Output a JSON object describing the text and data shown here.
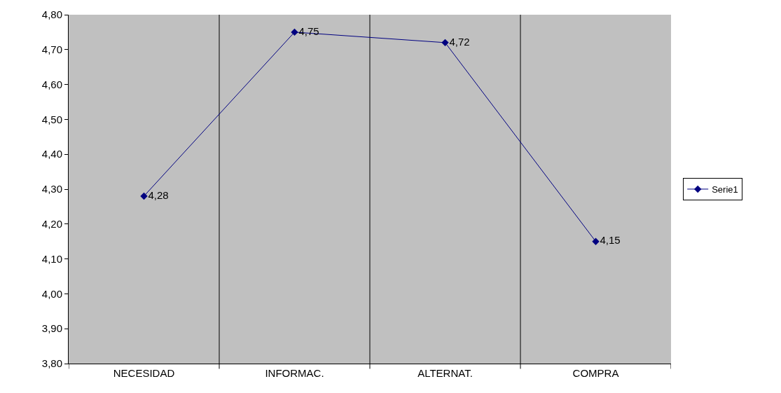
{
  "chart_data": {
    "type": "line",
    "categories": [
      "NECESIDAD",
      "INFORMAC.",
      "ALTERNAT.",
      "COMPRA"
    ],
    "series": [
      {
        "name": "Serie1",
        "color": "#000080",
        "values": [
          4.28,
          4.75,
          4.72,
          4.15
        ],
        "value_labels": [
          "4,28",
          "4,75",
          "4,72",
          "4,15"
        ]
      }
    ],
    "ylim": [
      3.8,
      4.8
    ],
    "yticks": [
      {
        "value": 3.8,
        "label": "3,80"
      },
      {
        "value": 3.9,
        "label": "3,90"
      },
      {
        "value": 4.0,
        "label": "4,00"
      },
      {
        "value": 4.1,
        "label": "4,10"
      },
      {
        "value": 4.2,
        "label": "4,20"
      },
      {
        "value": 4.3,
        "label": "4,30"
      },
      {
        "value": 4.4,
        "label": "4,40"
      },
      {
        "value": 4.5,
        "label": "4,50"
      },
      {
        "value": 4.6,
        "label": "4,60"
      },
      {
        "value": 4.7,
        "label": "4,70"
      },
      {
        "value": 4.8,
        "label": "4,80"
      }
    ],
    "grid": "x",
    "legend": "right",
    "marker": "diamond",
    "line_style": "solid"
  }
}
